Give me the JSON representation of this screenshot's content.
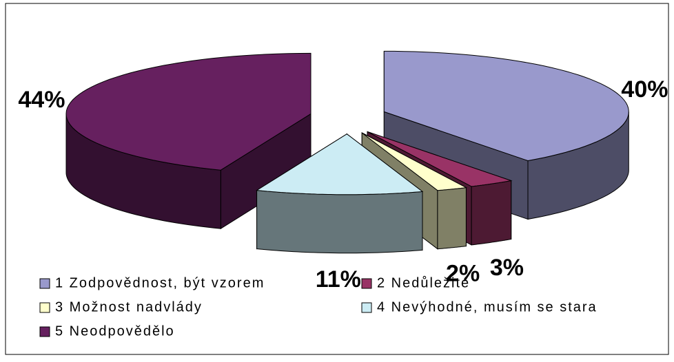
{
  "chart_data": {
    "type": "pie3d",
    "categories": [
      "1 Zodpovědnost, být vzorem",
      "2 Nedůležité",
      "3 Možnost nadvlády",
      "4 Nevýhodné, musím se stara",
      "5 Neodpovědělo"
    ],
    "values": [
      40,
      3,
      2,
      11,
      44
    ],
    "value_labels": [
      "40%",
      "3%",
      "2%",
      "11%",
      "44%"
    ],
    "colors": [
      "#9999cc",
      "#993366",
      "#ffffcc",
      "#ccecf4",
      "#66205f"
    ],
    "legend": "bottom"
  }
}
